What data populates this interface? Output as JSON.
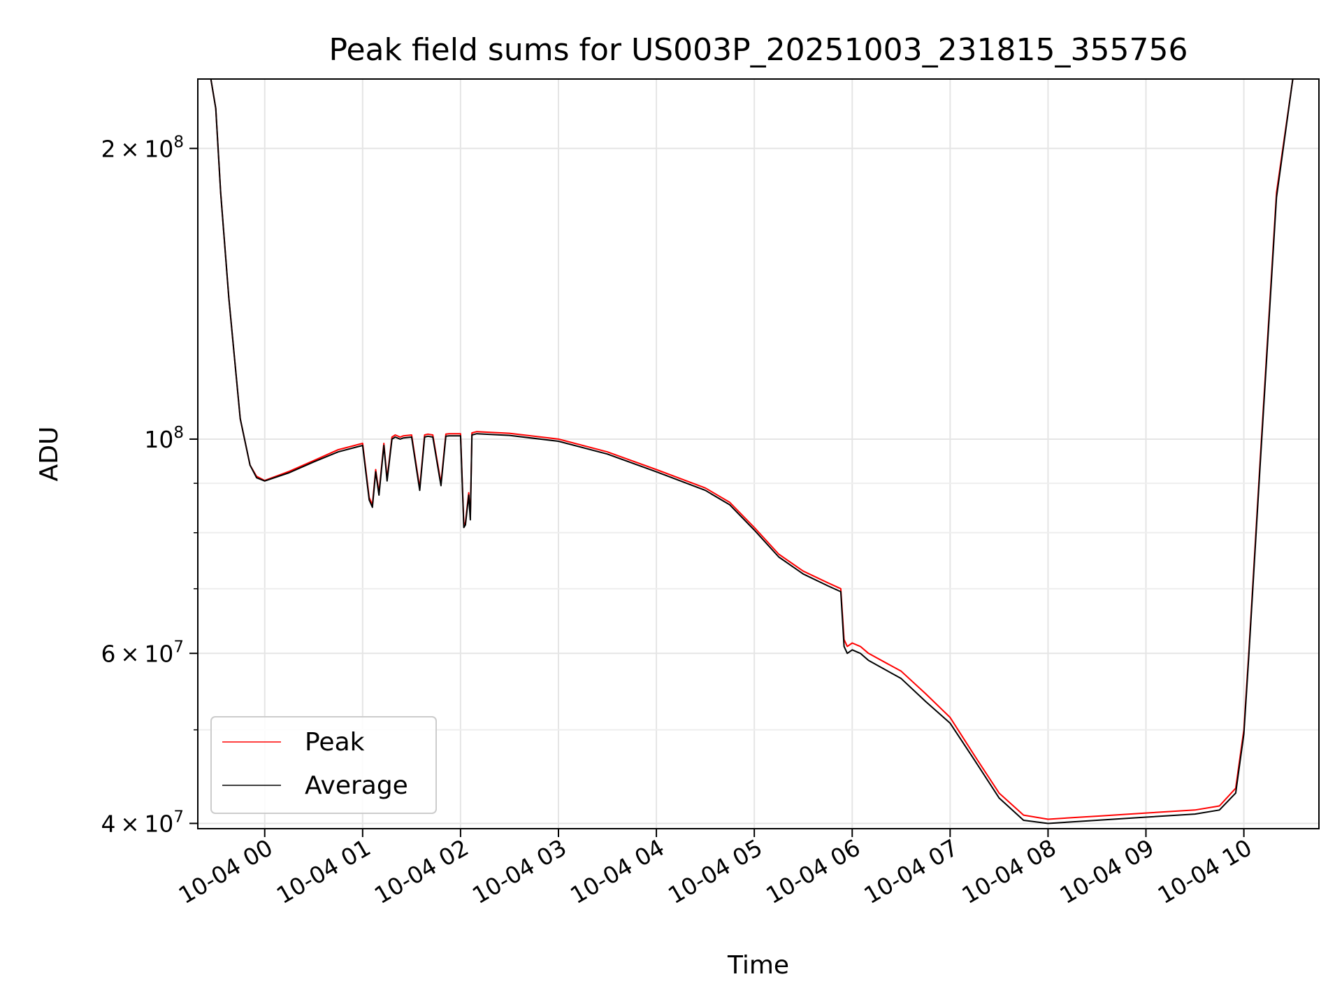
{
  "chart_data": {
    "type": "line",
    "title": "Peak field sums for US003P_20251003_231815_355756",
    "xlabel": "Time",
    "ylabel": "ADU",
    "y_scale": "log",
    "ylim": [
      39500000,
      236000000
    ],
    "xlim": [
      "10-03 23:19",
      "10-04 10:46"
    ],
    "x_ticks": [
      "10-04 00",
      "10-04 01",
      "10-04 02",
      "10-04 03",
      "10-04 04",
      "10-04 05",
      "10-04 06",
      "10-04 07",
      "10-04 08",
      "10-04 09",
      "10-04 10"
    ],
    "y_ticks": [
      {
        "label": "2 × 10^8",
        "mant": "2",
        "exp": "8",
        "value": 200000000
      },
      {
        "label": "10^8",
        "mant": "",
        "exp": "8",
        "value": 100000000
      },
      {
        "label": "6 × 10^7",
        "mant": "6",
        "exp": "7",
        "value": 60000000
      },
      {
        "label": "4 × 10^7",
        "mant": "4",
        "exp": "7",
        "value": 40000000
      }
    ],
    "grid": true,
    "legend_position": "lower-left",
    "series": [
      {
        "name": "Peak",
        "color": "#ff0000",
        "x": [
          "10-03 23:19",
          "10-03 23:27",
          "10-03 23:30",
          "10-03 23:33",
          "10-03 23:38",
          "10-03 23:45",
          "10-03 23:51",
          "10-03 23:55",
          "10-04 00:00",
          "10-04 00:15",
          "10-04 00:30",
          "10-04 00:45",
          "10-04 01:00",
          "10-04 01:04",
          "10-04 01:06",
          "10-04 01:08",
          "10-04 01:10",
          "10-04 01:13",
          "10-04 01:15",
          "10-04 01:18",
          "10-04 01:20",
          "10-04 01:23",
          "10-04 01:25",
          "10-04 01:30",
          "10-04 01:35",
          "10-04 01:38",
          "10-04 01:40",
          "10-04 01:43",
          "10-04 01:48",
          "10-04 01:51",
          "10-04 01:53",
          "10-04 01:58",
          "10-04 02:00",
          "10-04 02:02",
          "10-04 02:03",
          "10-04 02:05",
          "10-04 02:06",
          "10-04 02:07",
          "10-04 02:10",
          "10-04 02:30",
          "10-04 03:00",
          "10-04 03:30",
          "10-04 04:00",
          "10-04 04:30",
          "10-04 04:45",
          "10-04 05:00",
          "10-04 05:15",
          "10-04 05:30",
          "10-04 05:45",
          "10-04 05:53",
          "10-04 05:55",
          "10-04 05:57",
          "10-04 06:00",
          "10-04 06:05",
          "10-04 06:10",
          "10-04 06:30",
          "10-04 06:45",
          "10-04 07:00",
          "10-04 07:15",
          "10-04 07:30",
          "10-04 07:45",
          "10-04 08:00",
          "10-04 08:10",
          "10-04 08:20",
          "10-04 08:30",
          "10-04 09:00",
          "10-04 09:30",
          "10-04 09:45",
          "10-04 09:55",
          "10-04 10:00",
          "10-04 10:03",
          "10-04 10:10",
          "10-04 10:20",
          "10-04 10:30",
          "10-04 10:38",
          "10-04 10:46"
        ],
        "values": [
          236000000,
          236000000,
          220000000,
          180000000,
          140000000,
          105000000,
          94000000,
          91500000,
          90600000,
          92600000,
          95000000,
          97500000,
          99000000,
          87000000,
          85500000,
          93000000,
          88000000,
          99000000,
          91000000,
          100500000,
          101000000,
          100500000,
          100800000,
          101000000,
          89000000,
          101000000,
          101200000,
          101000000,
          90000000,
          101200000,
          101300000,
          101300000,
          101300000,
          81500000,
          82000000,
          88000000,
          83000000,
          101500000,
          101800000,
          101400000,
          100000000,
          97000000,
          93000000,
          89000000,
          86000000,
          81000000,
          76000000,
          73000000,
          71000000,
          70000000,
          62000000,
          61000000,
          61500000,
          61000000,
          60000000,
          57500000,
          54500000,
          51500000,
          47000000,
          43000000,
          40800000,
          40400000,
          40500000,
          40600000,
          40700000,
          41000000,
          41300000,
          41700000,
          43500000,
          50000000,
          60000000,
          95000000,
          180000000,
          236000000,
          236000000,
          236000000
        ]
      },
      {
        "name": "Average",
        "color": "#000000",
        "x": [
          "10-03 23:19",
          "10-03 23:27",
          "10-03 23:30",
          "10-03 23:33",
          "10-03 23:38",
          "10-03 23:45",
          "10-03 23:51",
          "10-03 23:55",
          "10-04 00:00",
          "10-04 00:15",
          "10-04 00:30",
          "10-04 00:45",
          "10-04 01:00",
          "10-04 01:04",
          "10-04 01:06",
          "10-04 01:08",
          "10-04 01:10",
          "10-04 01:13",
          "10-04 01:15",
          "10-04 01:18",
          "10-04 01:20",
          "10-04 01:23",
          "10-04 01:25",
          "10-04 01:30",
          "10-04 01:35",
          "10-04 01:38",
          "10-04 01:40",
          "10-04 01:43",
          "10-04 01:48",
          "10-04 01:51",
          "10-04 01:53",
          "10-04 01:58",
          "10-04 02:00",
          "10-04 02:02",
          "10-04 02:03",
          "10-04 02:05",
          "10-04 02:06",
          "10-04 02:07",
          "10-04 02:10",
          "10-04 02:30",
          "10-04 03:00",
          "10-04 03:30",
          "10-04 04:00",
          "10-04 04:30",
          "10-04 04:45",
          "10-04 05:00",
          "10-04 05:15",
          "10-04 05:30",
          "10-04 05:45",
          "10-04 05:53",
          "10-04 05:55",
          "10-04 05:57",
          "10-04 06:00",
          "10-04 06:05",
          "10-04 06:10",
          "10-04 06:30",
          "10-04 06:45",
          "10-04 07:00",
          "10-04 07:15",
          "10-04 07:30",
          "10-04 07:45",
          "10-04 08:00",
          "10-04 08:10",
          "10-04 08:20",
          "10-04 08:30",
          "10-04 09:00",
          "10-04 09:30",
          "10-04 09:45",
          "10-04 09:55",
          "10-04 10:00",
          "10-04 10:03",
          "10-04 10:10",
          "10-04 10:20",
          "10-04 10:30",
          "10-04 10:38",
          "10-04 10:46"
        ],
        "values": [
          236000000,
          236000000,
          220000000,
          180000000,
          140000000,
          105000000,
          94000000,
          91200000,
          90500000,
          92300000,
          94700000,
          97000000,
          98500000,
          86500000,
          85000000,
          92500000,
          87500000,
          98500000,
          90500000,
          100000000,
          100500000,
          100000000,
          100300000,
          100500000,
          88500000,
          100500000,
          100700000,
          100500000,
          89500000,
          100700000,
          100800000,
          100800000,
          100800000,
          81000000,
          81500000,
          87500000,
          82500000,
          101000000,
          101300000,
          100900000,
          99500000,
          96500000,
          92500000,
          88500000,
          85500000,
          80500000,
          75500000,
          72500000,
          70500000,
          69500000,
          61000000,
          60000000,
          60500000,
          60000000,
          59000000,
          56500000,
          53500000,
          50800000,
          46500000,
          42500000,
          40300000,
          40000000,
          40100000,
          40200000,
          40300000,
          40600000,
          40900000,
          41300000,
          43000000,
          49500000,
          59500000,
          94000000,
          178000000,
          236000000,
          236000000,
          236000000
        ]
      }
    ]
  }
}
